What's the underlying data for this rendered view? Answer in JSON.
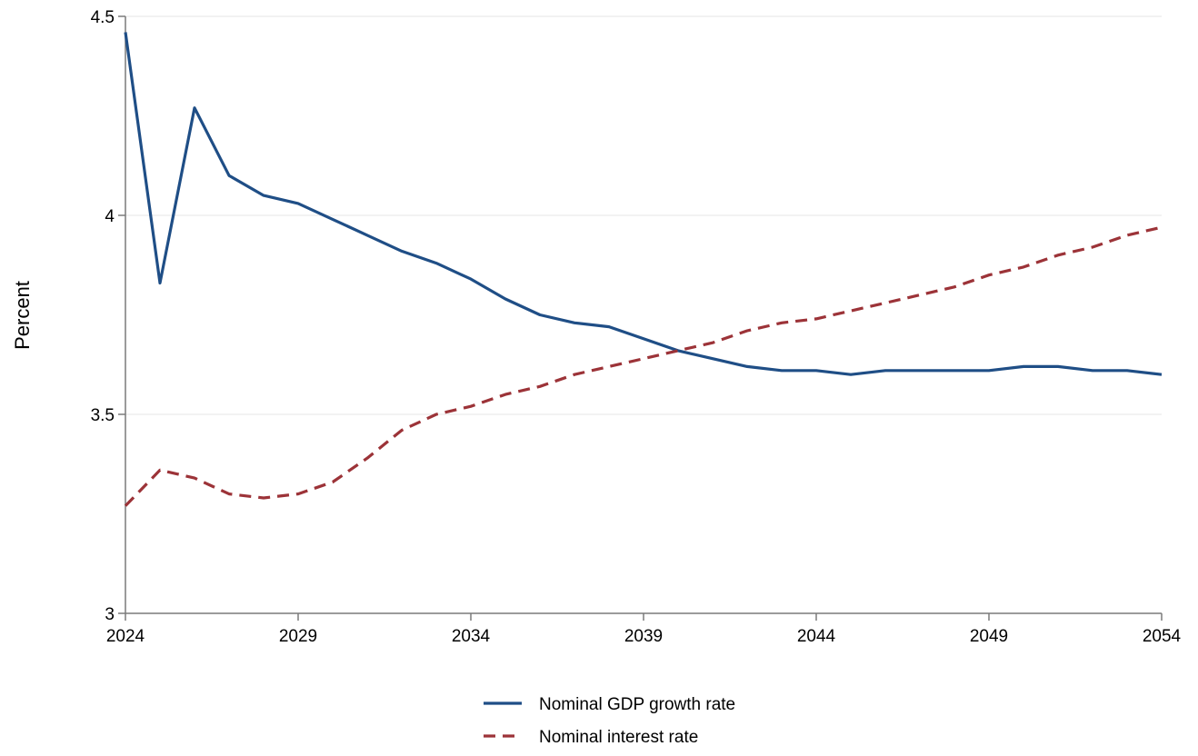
{
  "chart_data": {
    "type": "line",
    "title": "",
    "xlabel": "",
    "ylabel": "Percent",
    "xlim": [
      2024,
      2054
    ],
    "ylim": [
      3,
      4.5
    ],
    "x_ticks": [
      "2024",
      "2029",
      "2034",
      "2039",
      "2044",
      "2049",
      "2054"
    ],
    "y_ticks": [
      "3",
      "3.5",
      "4",
      "4.5"
    ],
    "grid": "horizontal",
    "legend_position": "bottom",
    "x": [
      2024,
      2025,
      2026,
      2027,
      2028,
      2029,
      2030,
      2031,
      2032,
      2033,
      2034,
      2035,
      2036,
      2037,
      2038,
      2039,
      2040,
      2041,
      2042,
      2043,
      2044,
      2045,
      2046,
      2047,
      2048,
      2049,
      2050,
      2051,
      2052,
      2053,
      2054
    ],
    "series": [
      {
        "name": "Nominal GDP growth rate",
        "color": "#1f4e86",
        "style": "solid",
        "values": [
          4.46,
          3.83,
          4.27,
          4.1,
          4.05,
          4.03,
          3.99,
          3.95,
          3.91,
          3.88,
          3.84,
          3.79,
          3.75,
          3.73,
          3.72,
          3.69,
          3.66,
          3.64,
          3.62,
          3.61,
          3.61,
          3.6,
          3.61,
          3.61,
          3.61,
          3.61,
          3.62,
          3.62,
          3.61,
          3.61,
          3.6
        ]
      },
      {
        "name": "Nominal interest rate",
        "color": "#9c3338",
        "style": "dashed",
        "values": [
          3.27,
          3.36,
          3.34,
          3.3,
          3.29,
          3.3,
          3.33,
          3.39,
          3.46,
          3.5,
          3.52,
          3.55,
          3.57,
          3.6,
          3.62,
          3.64,
          3.66,
          3.68,
          3.71,
          3.73,
          3.74,
          3.76,
          3.78,
          3.8,
          3.82,
          3.85,
          3.87,
          3.9,
          3.92,
          3.95,
          3.97
        ]
      }
    ]
  }
}
